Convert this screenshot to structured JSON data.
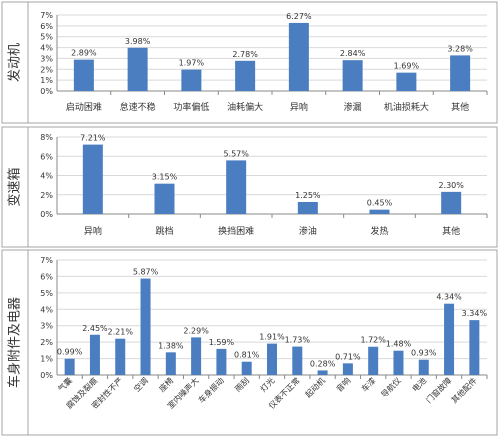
{
  "colors": {
    "bar": "#4a7ec1",
    "grid": "#d9d9d9",
    "border": "#a6a6a6",
    "text": "#333333"
  },
  "chart_data": [
    {
      "type": "bar",
      "ylabel": "发动机",
      "ylim": [
        0,
        7
      ],
      "yticks": [
        "0%",
        "1%",
        "2%",
        "3%",
        "4%",
        "5%",
        "6%",
        "7%"
      ],
      "categories": [
        "启动困难",
        "怠速不稳",
        "功率偏低",
        "油耗偏大",
        "异响",
        "渗漏",
        "机油损耗大",
        "其他"
      ],
      "values": [
        2.89,
        3.98,
        1.97,
        2.78,
        6.27,
        2.84,
        1.69,
        3.28
      ],
      "data_labels": [
        "2.89%",
        "3.98%",
        "1.97%",
        "2.78%",
        "6.27%",
        "2.84%",
        "1.69%",
        "3.28%"
      ],
      "grid": true
    },
    {
      "type": "bar",
      "ylabel": "变速箱",
      "ylim": [
        0,
        8
      ],
      "yticks": [
        "0%",
        "2%",
        "4%",
        "6%",
        "8%"
      ],
      "categories": [
        "异响",
        "跳档",
        "换挡困难",
        "渗油",
        "发热",
        "其他"
      ],
      "values": [
        7.21,
        3.15,
        5.57,
        1.25,
        0.45,
        2.3
      ],
      "data_labels": [
        "7.21%",
        "3.15%",
        "5.57%",
        "1.25%",
        "0.45%",
        "2.30%"
      ],
      "grid": true
    },
    {
      "type": "bar",
      "ylabel": "车身附件及电器",
      "ylim": [
        0,
        7
      ],
      "yticks": [
        "0%",
        "1%",
        "2%",
        "3%",
        "4%",
        "5%",
        "6%",
        "7%"
      ],
      "categories": [
        "气囊",
        "腐蚀及裂痕",
        "密封性不严",
        "空调",
        "座椅",
        "室内噪声大",
        "车身振动",
        "雨刮",
        "灯光",
        "仪表不正常",
        "起动机",
        "音响",
        "车漆",
        "导航仪",
        "电池",
        "门窗故障",
        "其他配件"
      ],
      "values": [
        0.99,
        2.45,
        2.21,
        5.87,
        1.38,
        2.29,
        1.59,
        0.81,
        1.91,
        1.73,
        0.28,
        0.71,
        1.72,
        1.48,
        0.93,
        4.34,
        3.34
      ],
      "data_labels": [
        "0.99%",
        "2.45%",
        "2.21%",
        "5.87%",
        "1.38%",
        "2.29%",
        "1.59%",
        "0.81%",
        "1.91%",
        "1.73%",
        "0.28%",
        "0.71%",
        "1.72%",
        "1.48%",
        "0.93%",
        "4.34%",
        "3.34%"
      ],
      "grid": true
    }
  ]
}
